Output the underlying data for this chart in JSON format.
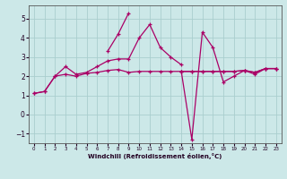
{
  "xlabel": "Windchill (Refroidissement éolien,°C)",
  "background_color": "#cce8e8",
  "grid_color": "#aacece",
  "line_color": "#aa0066",
  "xlim": [
    -0.5,
    23.5
  ],
  "ylim": [
    -1.5,
    5.7
  ],
  "xticks": [
    0,
    1,
    2,
    3,
    4,
    5,
    6,
    7,
    8,
    9,
    10,
    11,
    12,
    13,
    14,
    15,
    16,
    17,
    18,
    19,
    20,
    21,
    22,
    23
  ],
  "yticks": [
    -1,
    0,
    1,
    2,
    3,
    4,
    5
  ],
  "x": [
    0,
    1,
    2,
    3,
    4,
    5,
    6,
    7,
    8,
    9,
    10,
    11,
    12,
    13,
    14,
    15,
    16,
    17,
    18,
    19,
    20,
    21,
    22,
    23
  ],
  "s1": [
    1.1,
    1.2,
    2.0,
    2.5,
    2.1,
    2.2,
    2.5,
    2.8,
    2.9,
    2.9,
    4.0,
    4.7,
    3.5,
    3.0,
    2.6,
    null,
    null,
    null,
    null,
    null,
    null,
    null,
    null,
    null
  ],
  "s2": [
    null,
    null,
    null,
    null,
    null,
    null,
    null,
    3.3,
    4.2,
    5.3,
    null,
    null,
    null,
    null,
    null,
    null,
    null,
    null,
    null,
    null,
    null,
    null,
    null,
    null
  ],
  "s3": [
    1.1,
    1.2,
    2.0,
    2.1,
    2.0,
    2.15,
    2.2,
    2.3,
    2.35,
    2.2,
    2.25,
    2.25,
    2.25,
    2.25,
    2.25,
    2.25,
    2.25,
    2.25,
    2.25,
    2.25,
    2.3,
    2.2,
    2.4,
    2.4
  ],
  "s4": [
    null,
    null,
    null,
    null,
    null,
    null,
    null,
    null,
    null,
    null,
    null,
    null,
    null,
    null,
    2.25,
    -1.3,
    4.3,
    3.5,
    1.7,
    2.0,
    2.3,
    2.1,
    2.4,
    2.4
  ],
  "s5": [
    null,
    null,
    null,
    null,
    null,
    null,
    null,
    null,
    null,
    null,
    null,
    null,
    null,
    null,
    2.25,
    2.25,
    2.25,
    2.25,
    2.25,
    2.25,
    2.3,
    2.2,
    2.4,
    2.4
  ]
}
